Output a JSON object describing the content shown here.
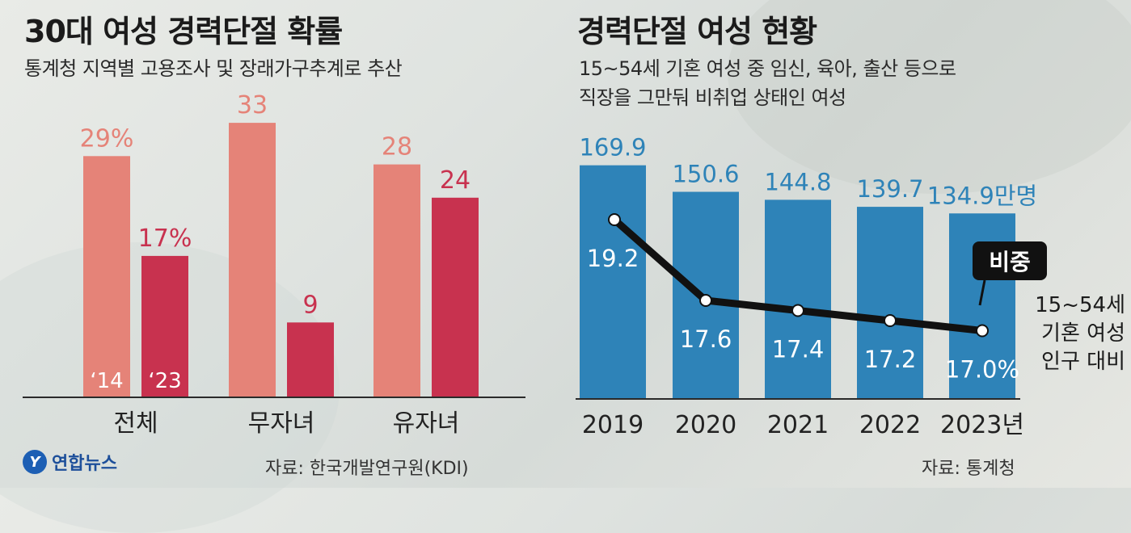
{
  "left": {
    "title": "30대 여성 경력단절 확률",
    "subtitle": "통계청 지역별 고용조사 및 장래가구추계로 추산",
    "source": "자료: 한국개발연구원(KDI)"
  },
  "right": {
    "title": "경력단절 여성 현황",
    "subtitle_line1": "15~54세 기혼 여성 중 임신, 육아, 출산 등으로",
    "subtitle_line2": "직장을 그만둬 비취업 상태인 여성",
    "source": "자료: 통계청",
    "legend_badge": "비중",
    "legend_note": [
      "15~54세",
      "기혼 여성",
      "인구 대비"
    ]
  },
  "logo": {
    "text": "연합뉴스"
  },
  "colors": {
    "bar_2014": "#e58378",
    "bar_2023": "#c8324f",
    "bar_blue": "#2e83b8",
    "line": "#111111"
  },
  "chart_data": [
    {
      "type": "bar",
      "categories": [
        "전체",
        "무자녀",
        "유자녀"
      ],
      "series": [
        {
          "name": "‘14",
          "values": [
            29,
            33,
            28
          ],
          "labels": [
            "29%",
            "33",
            "28"
          ]
        },
        {
          "name": "‘23",
          "values": [
            17,
            9,
            24
          ],
          "labels": [
            "17%",
            "9",
            "24"
          ]
        }
      ],
      "ylim": [
        0,
        33
      ]
    },
    {
      "type": "bar",
      "categories": [
        "2019",
        "2020",
        "2021",
        "2022",
        "2023년"
      ],
      "series": [
        {
          "values": [
            169.9,
            150.6,
            144.8,
            139.7,
            134.9
          ],
          "labels": [
            "169.9",
            "150.6",
            "144.8",
            "139.7",
            "134.9만명"
          ]
        }
      ],
      "line_series": {
        "name": "비중",
        "values": [
          19.2,
          17.6,
          17.4,
          17.2,
          17.0
        ],
        "labels": [
          "19.2",
          "17.6",
          "17.4",
          "17.2",
          "17.0%"
        ]
      }
    }
  ]
}
